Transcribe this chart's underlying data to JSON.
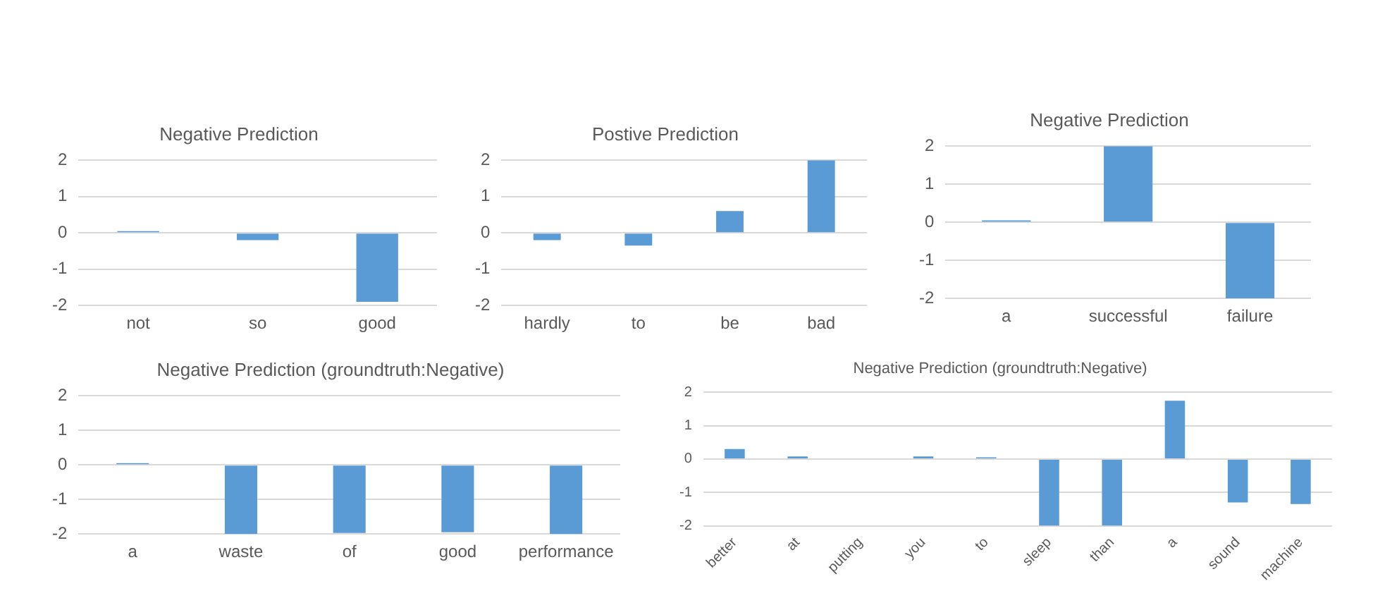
{
  "chart_data": [
    {
      "type": "bar",
      "title": "Negative Prediction",
      "categories": [
        "not",
        "so",
        "good"
      ],
      "values": [
        0.05,
        -0.2,
        -1.9
      ],
      "color": "#5b9bd5",
      "ylim": [
        -2,
        2
      ],
      "yticks": [
        -2,
        -1,
        0,
        1,
        2
      ],
      "grid": "y",
      "legend": false
    },
    {
      "type": "bar",
      "title": "Postive Prediction",
      "categories": [
        "hardly",
        "to",
        "be",
        "bad"
      ],
      "values": [
        -0.2,
        -0.35,
        0.6,
        2
      ],
      "color": "#5b9bd5",
      "ylim": [
        -2,
        2
      ],
      "yticks": [
        -2,
        -1,
        0,
        1,
        2
      ],
      "grid": "y",
      "legend": false
    },
    {
      "type": "bar",
      "title": "Negative Prediction",
      "categories": [
        "a",
        "successful",
        "failure"
      ],
      "values": [
        0.05,
        2,
        -2
      ],
      "color": "#5b9bd5",
      "ylim": [
        -2,
        2
      ],
      "yticks": [
        -2,
        -1,
        0,
        1,
        2
      ],
      "grid": "y",
      "legend": false
    },
    {
      "type": "bar",
      "title": "Negative Prediction (groundtruth:Negative)",
      "categories": [
        "a",
        "waste",
        "of",
        "good",
        "performance"
      ],
      "values": [
        0.05,
        -2,
        -1.97,
        -1.95,
        -2
      ],
      "color": "#5b9bd5",
      "ylim": [
        -2,
        2
      ],
      "yticks": [
        -2,
        -1,
        0,
        1,
        2
      ],
      "grid": "y",
      "legend": false
    },
    {
      "type": "bar",
      "title": "Negative Prediction (groundtruth:Negative)",
      "categories": [
        "better",
        "at",
        "putting",
        "you",
        "to",
        "sleep",
        "than",
        "a",
        "sound",
        "machine"
      ],
      "values": [
        0.3,
        0.08,
        0,
        0.08,
        0.05,
        -2,
        -2,
        1.75,
        -1.3,
        -1.35
      ],
      "color": "#5b9bd5",
      "ylim": [
        -2,
        2
      ],
      "yticks": [
        -2,
        -1,
        0,
        1,
        2
      ],
      "grid": "y",
      "legend": false
    }
  ]
}
